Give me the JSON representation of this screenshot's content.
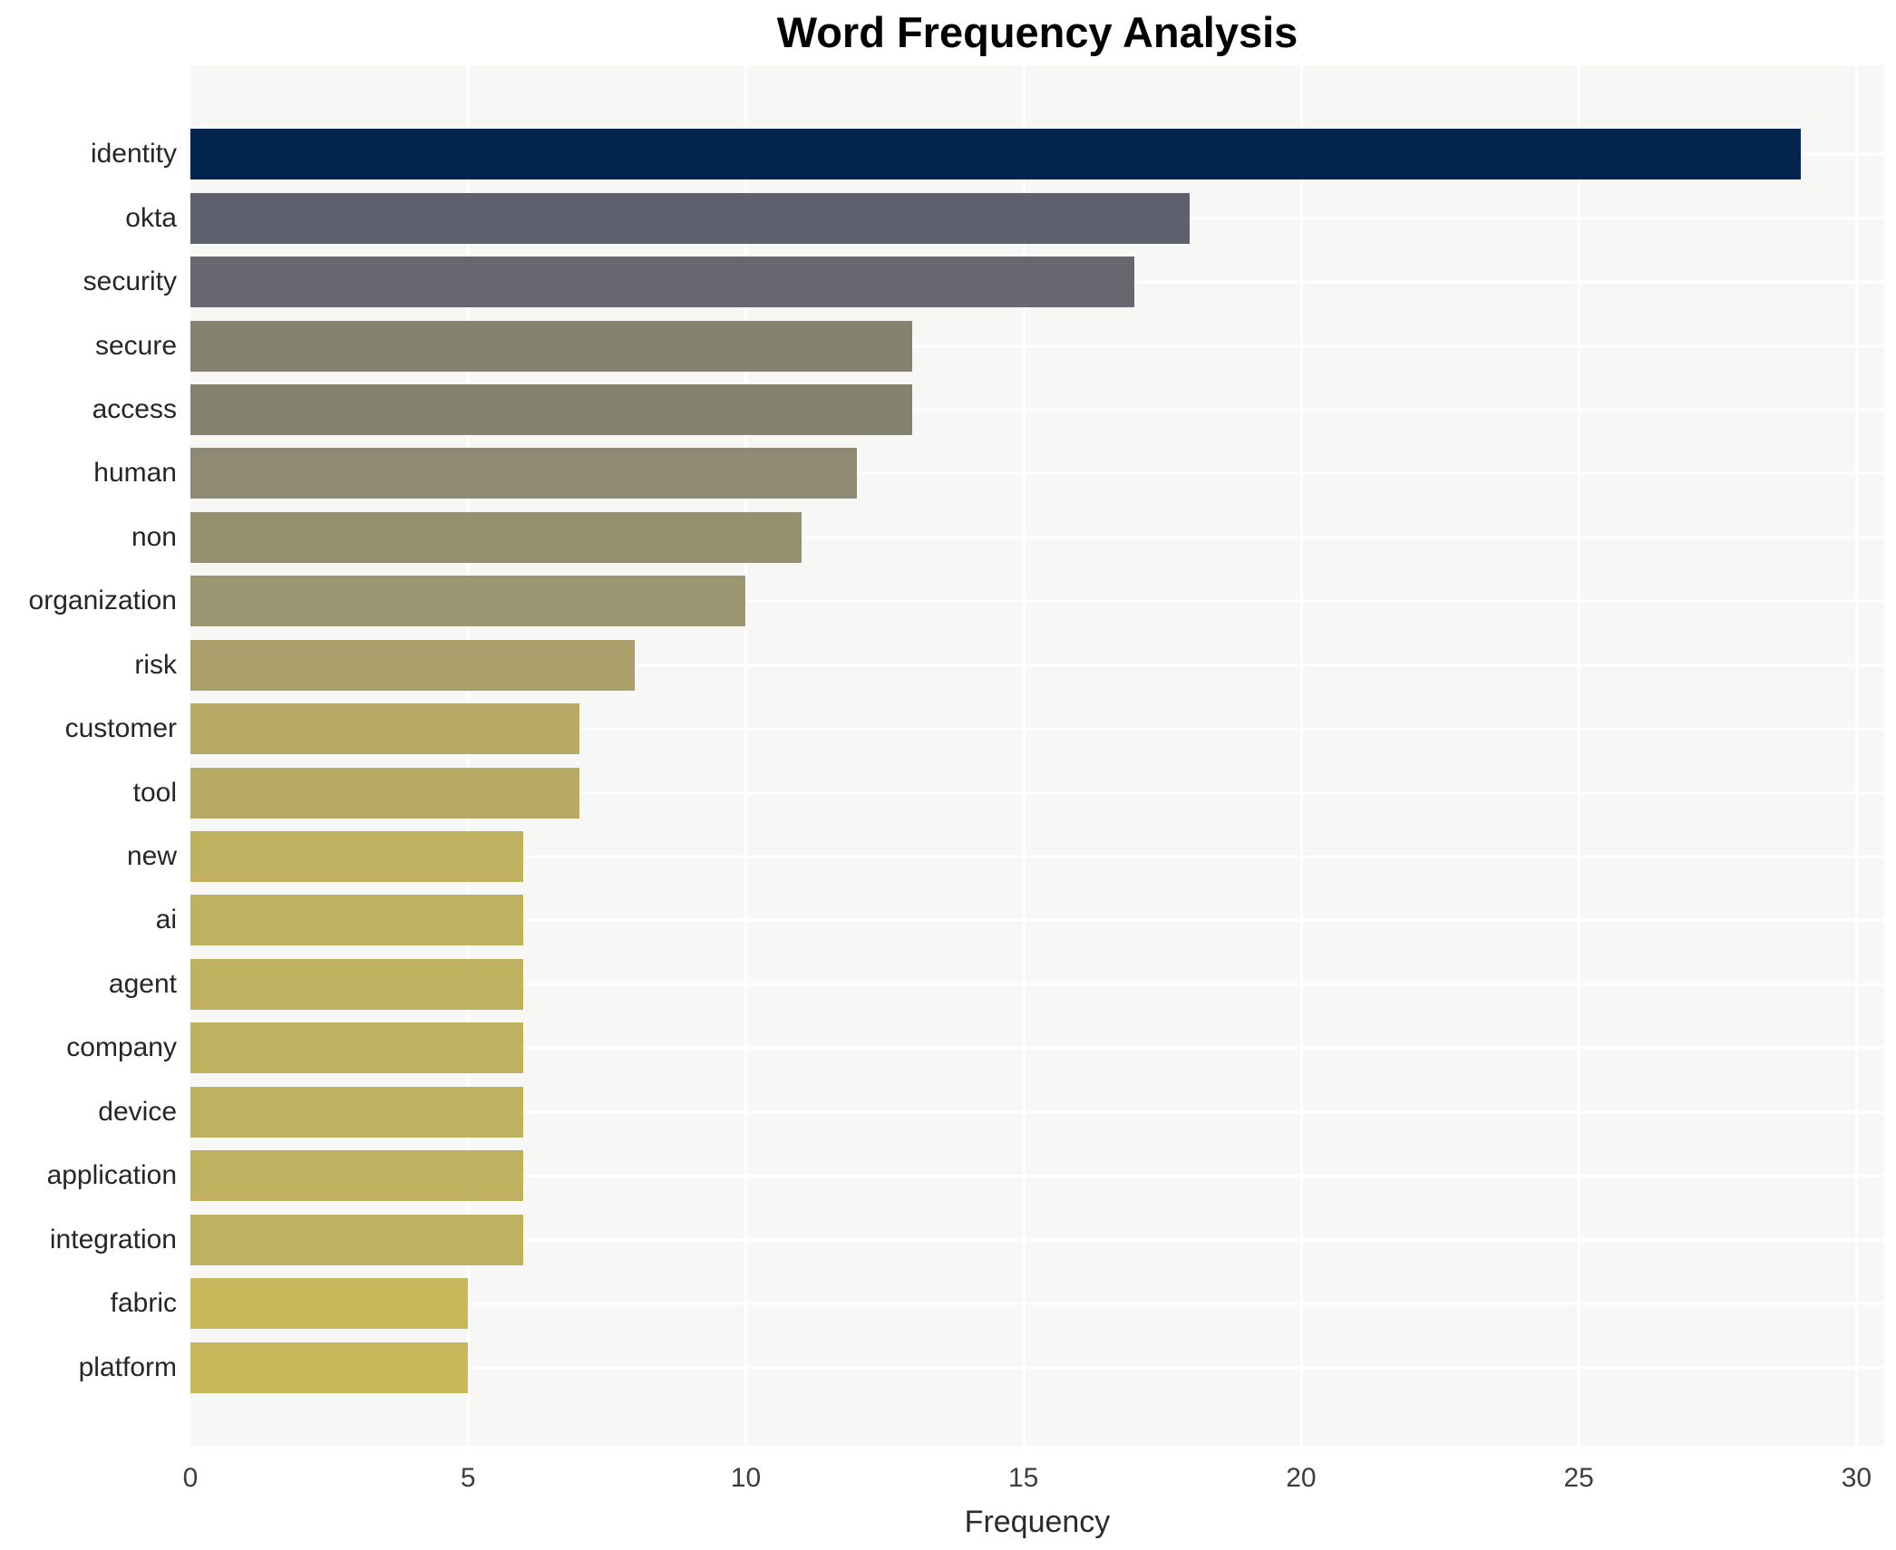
{
  "chart_data": {
    "type": "bar",
    "orientation": "horizontal",
    "title": "Word Frequency Analysis",
    "xlabel": "Frequency",
    "ylabel": "",
    "categories": [
      "identity",
      "okta",
      "security",
      "secure",
      "access",
      "human",
      "non",
      "organization",
      "risk",
      "customer",
      "tool",
      "new",
      "ai",
      "agent",
      "company",
      "device",
      "application",
      "integration",
      "fabric",
      "platform"
    ],
    "values": [
      29,
      18,
      17,
      13,
      13,
      12,
      11,
      10,
      8,
      7,
      7,
      6,
      6,
      6,
      6,
      6,
      6,
      6,
      5,
      5
    ],
    "xlim": [
      0,
      30.5
    ],
    "xticks": [
      0,
      5,
      10,
      15,
      20,
      25,
      30
    ],
    "grid": "on",
    "legend": "none",
    "plot_background": "#f7f7f5",
    "gridline_color": "#ffffff",
    "bar_colors": [
      "#03244d",
      "#5e606d",
      "#67686f",
      "#868270",
      "#868270",
      "#8f8a74",
      "#97906f",
      "#9d9673",
      "#ab9f6b",
      "#b7aa66",
      "#b7aa66",
      "#c0b161",
      "#c0b161",
      "#c0b161",
      "#c0b161",
      "#c0b161",
      "#c0b161",
      "#c0b161",
      "#c9b75c",
      "#c9b75c"
    ]
  }
}
